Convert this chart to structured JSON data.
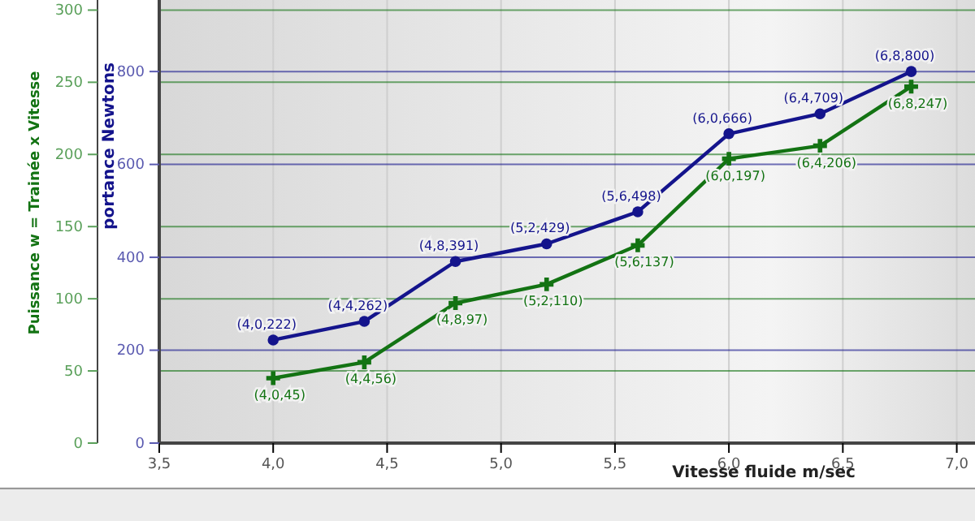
{
  "chart_data": {
    "type": "line",
    "xlabel": "Vitesse fluide m/sec",
    "ylabel": "portance Newtons",
    "y2label": "Puissance w = Trainée x Vitesse",
    "x": [
      4.0,
      4.4,
      4.8,
      5.2,
      5.6,
      6.0,
      6.4,
      6.8
    ],
    "xlim": [
      3.5,
      7.08
    ],
    "xticks": [
      {
        "value": 3.5,
        "label": "3,5"
      },
      {
        "value": 4,
        "label": "4,0"
      },
      {
        "value": 4.5,
        "label": "4,5"
      },
      {
        "value": 5,
        "label": "5,0"
      },
      {
        "value": 5.5,
        "label": "5,5"
      },
      {
        "value": 6,
        "label": "6,0"
      },
      {
        "value": 6.5,
        "label": "6,5"
      },
      {
        "value": 7,
        "label": "7,0"
      }
    ],
    "ylim": [
      0,
      954
    ],
    "yticks": [
      0,
      200,
      400,
      600,
      800
    ],
    "y2lim": [
      0,
      307
    ],
    "y2ticks": [
      0,
      50,
      100,
      150,
      200,
      250,
      300
    ],
    "grid": true,
    "series": [
      {
        "color": "#14148c",
        "marker": "circle",
        "values": [
          222,
          262,
          391,
          429,
          498,
          666,
          709,
          800
        ],
        "value_labels": [
          "(4,0,222)",
          "(4,4,262)",
          "(4,8,391)",
          "(5,2,429)",
          "(5,6,498)",
          "(6,0,666)",
          "(6,4,709)",
          "(6,8,800)"
        ]
      },
      {
        "color": "#137313",
        "marker": "cross",
        "axis": "y2",
        "values": [
          45,
          56,
          97,
          110,
          137,
          197,
          206,
          247
        ],
        "value_labels": [
          "(4,0,45)",
          "(4,4,56)",
          "(4,8,97)",
          "(5,2,110)",
          "(5,6,137)",
          "(6,0,197)",
          "(6,4,206)",
          "(6,8,247)"
        ]
      }
    ]
  }
}
